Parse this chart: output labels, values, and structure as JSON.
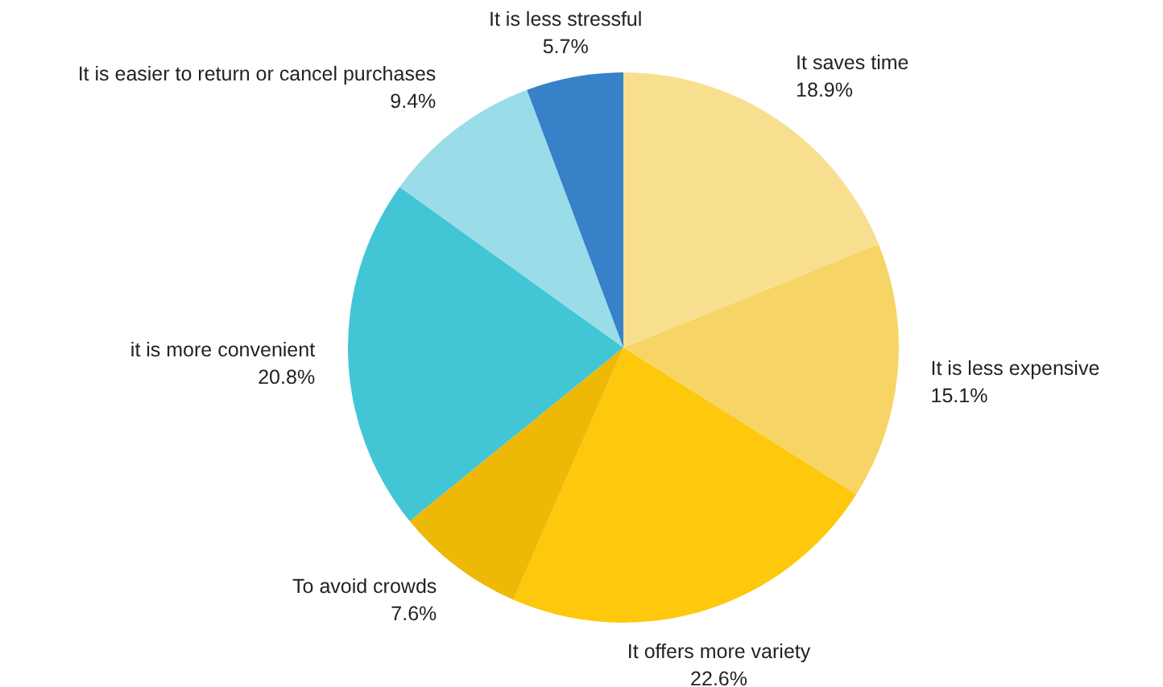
{
  "chart_data": {
    "type": "pie",
    "categories": [
      "It saves time",
      "It is less expensive",
      "It offers more variety",
      "To avoid crowds",
      "it is more convenient",
      "It is easier to return or cancel purchases",
      "It is less stressful"
    ],
    "values": [
      18.9,
      15.1,
      22.6,
      7.6,
      20.8,
      9.4,
      5.7
    ],
    "colors": [
      "#f8df8f",
      "#f6d566",
      "#fec80c",
      "#eeb807",
      "#42c5d5",
      "#9adce8",
      "#3781c8"
    ],
    "value_labels": [
      "18.9%",
      "15.1%",
      "22.6%",
      "7.6%",
      "20.8%",
      "9.4%",
      "5.7%"
    ],
    "legend": false
  }
}
